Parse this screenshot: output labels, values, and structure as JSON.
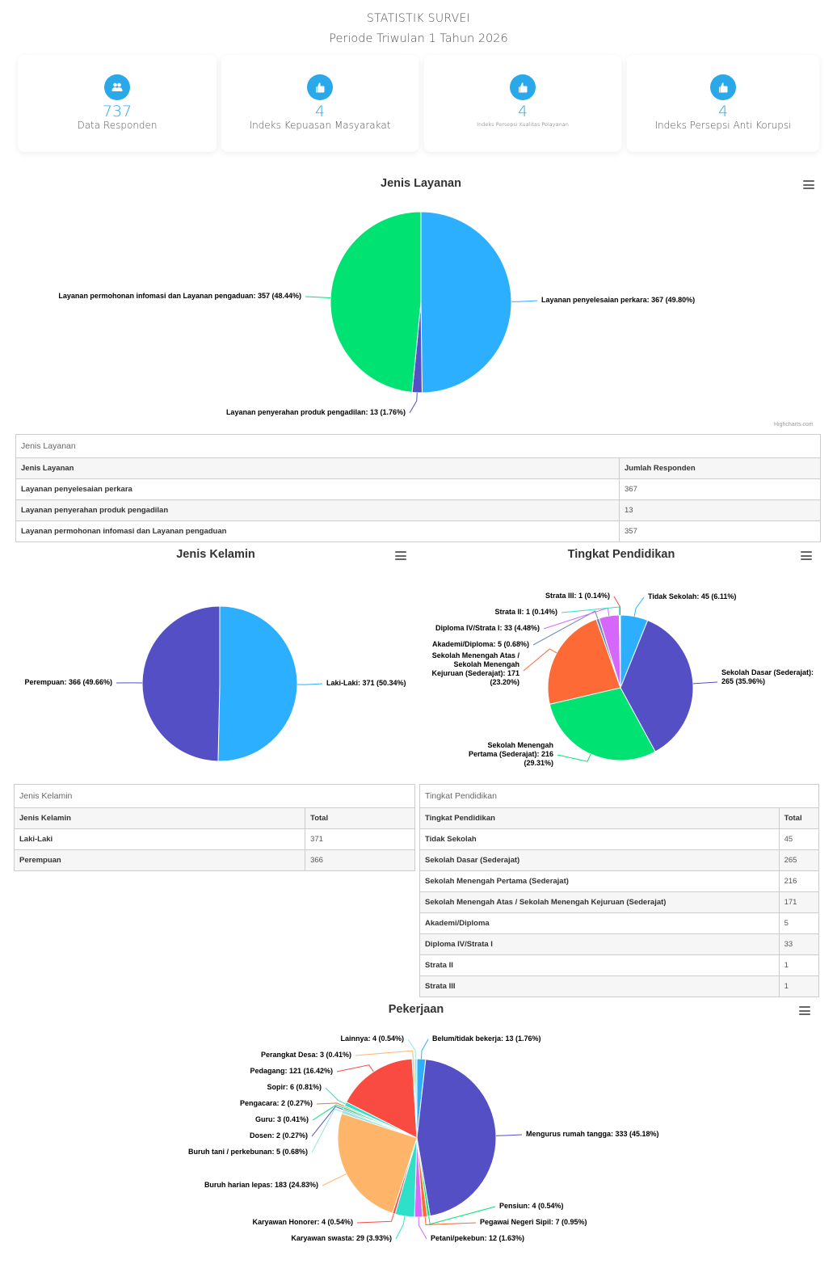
{
  "header": {
    "title": "STATISTIK SURVEI",
    "subtitle": "Periode Triwulan 1 Tahun 2026"
  },
  "cards": [
    {
      "icon": "users-icon",
      "value": "737",
      "label": "Data Responden"
    },
    {
      "icon": "thumbs-up-icon",
      "value": "4",
      "label": "Indeks Kepuasan Masyarakat"
    },
    {
      "icon": "thumbs-up-icon",
      "value": "4",
      "label": "Indeks Persepsi Kualitas Pelayanan"
    },
    {
      "icon": "thumbs-up-icon",
      "value": "4",
      "label": "Indeks Persepsi Anti Korupsi"
    }
  ],
  "credits": "Highcharts.com",
  "chart_data": [
    {
      "type": "pie",
      "title": "Jenis Layanan",
      "labels": [
        "Layanan penyelesaian perkara",
        "Layanan penyerahan produk pengadilan",
        "Layanan permohonan infomasi dan Layanan pengaduan"
      ],
      "values": [
        367,
        13,
        357
      ],
      "percents": [
        49.8,
        1.76,
        48.44
      ],
      "colors": [
        "#2caffe",
        "#544fc5",
        "#00e272"
      ]
    },
    {
      "type": "pie",
      "title": "Jenis Kelamin",
      "labels": [
        "Laki-Laki",
        "Perempuan"
      ],
      "values": [
        371,
        366
      ],
      "percents": [
        50.34,
        49.66
      ],
      "colors": [
        "#2caffe",
        "#544fc5"
      ]
    },
    {
      "type": "pie",
      "title": "Tingkat Pendidikan",
      "labels": [
        "Tidak Sekolah",
        "Sekolah Dasar (Sederajat)",
        "Sekolah Menengah Pertama (Sederajat)",
        "Sekolah Menengah Atas / Sekolah Menengah Kejuruan (Sederajat)",
        "Akademi/Diploma",
        "Diploma IV/Strata I",
        "Strata II",
        "Strata III"
      ],
      "values": [
        45,
        265,
        216,
        171,
        5,
        33,
        1,
        1
      ],
      "percents": [
        6.11,
        35.96,
        29.31,
        23.2,
        0.68,
        4.48,
        0.14,
        0.14
      ],
      "colors": [
        "#2caffe",
        "#544fc5",
        "#00e272",
        "#fe6a35",
        "#6b8abc",
        "#d568fb",
        "#2ee0ca",
        "#fa4b42"
      ]
    },
    {
      "type": "pie",
      "title": "Pekerjaan",
      "labels": [
        "Belum/tidak bekerja",
        "Mengurus rumah tangga",
        "Pensiun",
        "Pegawai Negeri Sipil",
        "Petani/pekebun",
        "Karyawan swasta",
        "Karyawan Honorer",
        "Buruh harian lepas",
        "Buruh tani / perkebunan",
        "Dosen",
        "Guru",
        "Pengacara",
        "Sopir",
        "Pedagang",
        "Perangkat Desa",
        "Lainnya"
      ],
      "values": [
        13,
        333,
        4,
        7,
        12,
        29,
        4,
        183,
        5,
        2,
        3,
        2,
        6,
        121,
        3,
        4
      ],
      "percents": [
        1.76,
        45.18,
        0.54,
        0.95,
        1.63,
        3.93,
        0.54,
        24.83,
        0.68,
        0.27,
        0.41,
        0.27,
        0.81,
        16.42,
        0.41,
        0.54
      ],
      "colors": [
        "#2caffe",
        "#544fc5",
        "#00e272",
        "#fe6a35",
        "#d568fb",
        "#2ee0ca",
        "#fa4b42",
        "#feb56a",
        "#91e8e1",
        "#544fc5",
        "#00e272",
        "#fe6a35",
        "#2ee0ca",
        "#fa4b42",
        "#feb56a",
        "#91e8e1"
      ]
    }
  ],
  "tables": [
    {
      "caption": "Jenis Layanan",
      "headers": [
        "Jenis Layanan",
        "Jumlah Responden"
      ],
      "rows": [
        [
          "Layanan penyelesaian perkara",
          "367"
        ],
        [
          "Layanan penyerahan produk pengadilan",
          "13"
        ],
        [
          "Layanan permohonan infomasi dan Layanan pengaduan",
          "357"
        ]
      ]
    },
    {
      "caption": "Jenis Kelamin",
      "headers": [
        "Jenis Kelamin",
        "Total"
      ],
      "rows": [
        [
          "Laki-Laki",
          "371"
        ],
        [
          "Perempuan",
          "366"
        ]
      ]
    },
    {
      "caption": "Tingkat Pendidikan",
      "headers": [
        "Tingkat Pendidikan",
        "Total"
      ],
      "rows": [
        [
          "Tidak Sekolah",
          "45"
        ],
        [
          "Sekolah Dasar (Sederajat)",
          "265"
        ],
        [
          "Sekolah Menengah Pertama (Sederajat)",
          "216"
        ],
        [
          "Sekolah Menengah Atas / Sekolah Menengah Kejuruan (Sederajat)",
          "171"
        ],
        [
          "Akademi/Diploma",
          "5"
        ],
        [
          "Diploma IV/Strata I",
          "33"
        ],
        [
          "Strata II",
          "1"
        ],
        [
          "Strata III",
          "1"
        ]
      ]
    }
  ]
}
